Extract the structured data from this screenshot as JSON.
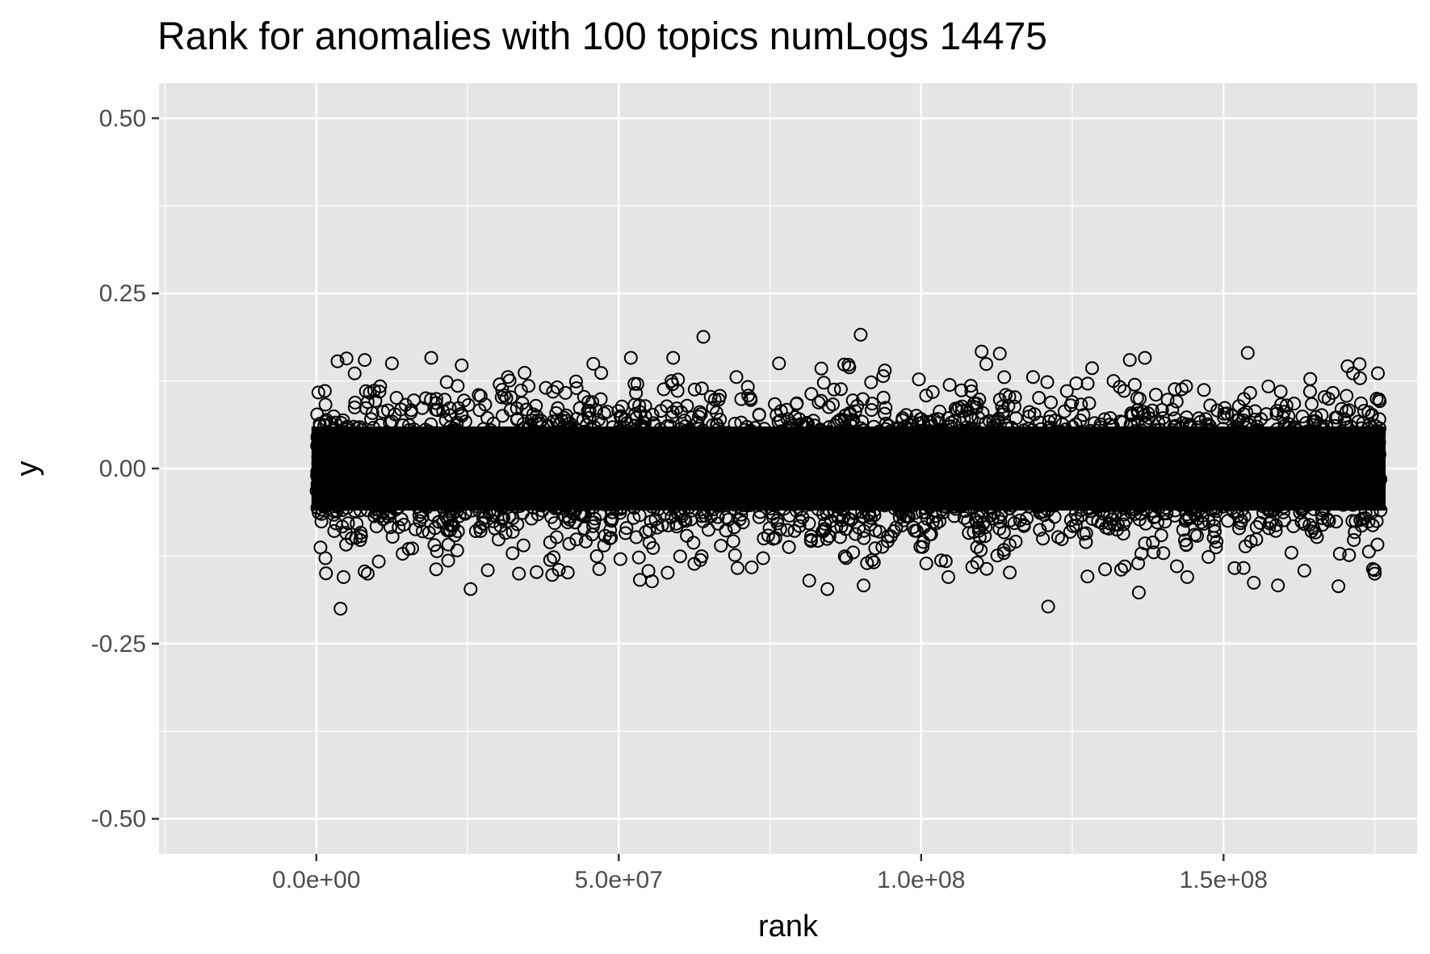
{
  "chart_data": {
    "type": "scatter",
    "title": "Rank for anomalies with 100 topics numLogs 14475",
    "xlabel": "rank",
    "ylabel": "y",
    "xlim": [
      -26000000,
      182000000
    ],
    "ylim": [
      -0.55,
      0.55
    ],
    "x_ticks": [
      {
        "value": 0,
        "label": "0.0e+00"
      },
      {
        "value": 50000000,
        "label": "5.0e+07"
      },
      {
        "value": 100000000,
        "label": "1.0e+08"
      },
      {
        "value": 150000000,
        "label": "1.5e+08"
      }
    ],
    "y_ticks": [
      {
        "value": 0.5,
        "label": "0.50"
      },
      {
        "value": 0.25,
        "label": "0.25"
      },
      {
        "value": 0.0,
        "label": "0.00"
      },
      {
        "value": -0.25,
        "label": "-0.25"
      },
      {
        "value": -0.5,
        "label": "-0.50"
      }
    ],
    "grid": true,
    "panel_background": "#e5e5e5",
    "grid_color": "#ffffff",
    "point_color": "#000000",
    "point_shape": "open-circle",
    "bulk_distribution": {
      "x_range": [
        0,
        176000000
      ],
      "y_core_range": [
        -0.06,
        0.06
      ],
      "y_spread_range": [
        -0.15,
        0.15
      ]
    },
    "outliers": [
      {
        "x": 4000000,
        "y": -0.2
      },
      {
        "x": 121000000,
        "y": -0.197
      },
      {
        "x": 64000000,
        "y": 0.188
      },
      {
        "x": 90000000,
        "y": 0.191
      },
      {
        "x": 136000000,
        "y": -0.177
      },
      {
        "x": 84500000,
        "y": -0.172
      },
      {
        "x": 25500000,
        "y": -0.172
      },
      {
        "x": 90500000,
        "y": -0.167
      },
      {
        "x": 159000000,
        "y": -0.167
      },
      {
        "x": 169000000,
        "y": -0.168
      },
      {
        "x": 55500000,
        "y": -0.161
      },
      {
        "x": 155000000,
        "y": -0.163
      },
      {
        "x": 53500000,
        "y": -0.159
      },
      {
        "x": 81500000,
        "y": -0.16
      },
      {
        "x": 110000000,
        "y": 0.167
      },
      {
        "x": 113000000,
        "y": 0.164
      },
      {
        "x": 154000000,
        "y": 0.165
      },
      {
        "x": 4500000,
        "y": -0.155
      },
      {
        "x": 19000000,
        "y": 0.158
      },
      {
        "x": 52000000,
        "y": 0.158
      },
      {
        "x": 59000000,
        "y": 0.158
      },
      {
        "x": 137000000,
        "y": 0.158
      },
      {
        "x": 134500000,
        "y": 0.155
      },
      {
        "x": 8000000,
        "y": 0.155
      },
      {
        "x": 5000000,
        "y": 0.157
      },
      {
        "x": 3500000,
        "y": 0.153
      },
      {
        "x": 127500000,
        "y": -0.154
      },
      {
        "x": 144000000,
        "y": -0.155
      },
      {
        "x": 104500000,
        "y": -0.155
      },
      {
        "x": 175000000,
        "y": -0.15
      },
      {
        "x": 8500000,
        "y": -0.15
      },
      {
        "x": 39000000,
        "y": -0.152
      },
      {
        "x": 172500000,
        "y": 0.149
      },
      {
        "x": 12500000,
        "y": 0.15
      },
      {
        "x": 76500000,
        "y": 0.15
      },
      {
        "x": 88000000,
        "y": 0.148
      },
      {
        "x": 33500000,
        "y": -0.15
      },
      {
        "x": 1500000,
        "y": -0.128
      },
      {
        "x": 94000000,
        "y": 0.14
      },
      {
        "x": 170500000,
        "y": 0.146
      }
    ]
  }
}
